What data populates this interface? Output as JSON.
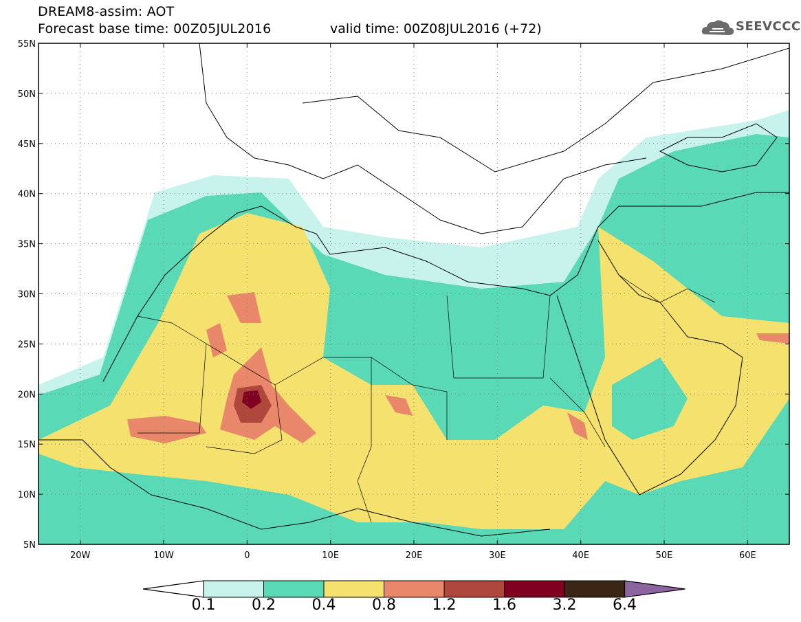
{
  "header": {
    "title": "DREAM8-assim: AOT",
    "base_time": "Forecast base time: 00Z05JUL2016",
    "valid_time": "valid time: 00Z08JUL2016 (+72)"
  },
  "logo": {
    "text": "SEEVCCC",
    "icon": "cloud-icon"
  },
  "map": {
    "lat_labels": [
      "55N",
      "50N",
      "45N",
      "40N",
      "35N",
      "30N",
      "25N",
      "20N",
      "15N",
      "10N",
      "5N"
    ],
    "lon_labels": [
      "20W",
      "10W",
      "0",
      "10E",
      "20E",
      "30E",
      "40E",
      "50E",
      "60E"
    ],
    "lon_range": [
      -25,
      65
    ],
    "lat_range": [
      5,
      55
    ],
    "grid": "dotted"
  },
  "colorbar": {
    "labels": [
      "0.1",
      "0.2",
      "0.4",
      "0.8",
      "1.2",
      "1.6",
      "3.2",
      "6.4"
    ],
    "colors": [
      "#c8f2ec",
      "#5ad9b6",
      "#f5e16e",
      "#e8876a",
      "#b0473d",
      "#800021",
      "#3b2514",
      "#8c64a0"
    ],
    "under_color": "#ffffff"
  }
}
